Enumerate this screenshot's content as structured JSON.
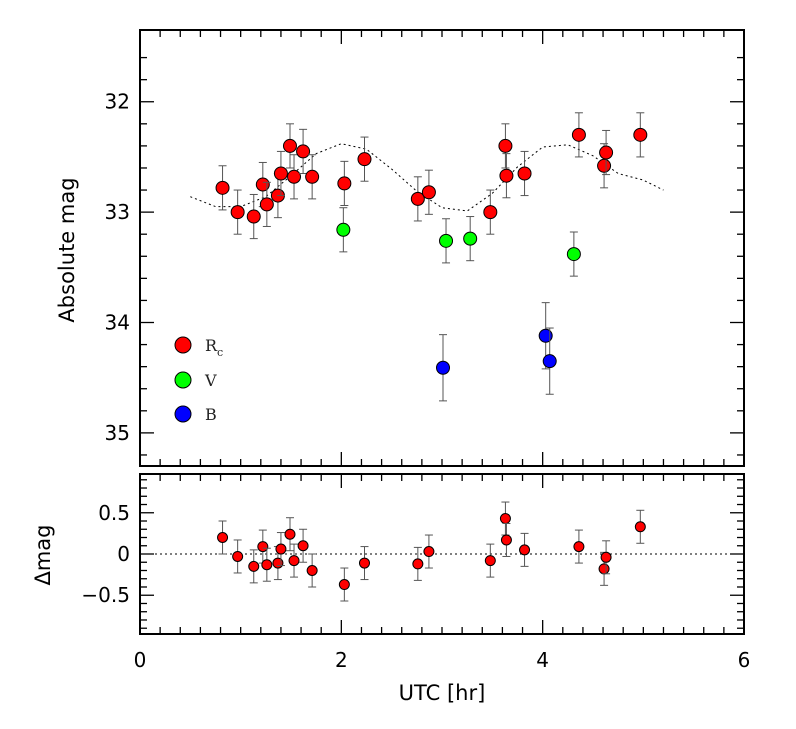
{
  "chart_data": [
    {
      "type": "scatter",
      "panel": "top",
      "xlabel": "UTC [hr]",
      "ylabel": "Absolute mag",
      "xlim": [
        0,
        6
      ],
      "ylim": [
        35.3,
        31.35
      ],
      "y_inverted": true,
      "x_ticks": [
        "0",
        "2",
        "4",
        "6"
      ],
      "y_ticks": [
        "32",
        "33",
        "34",
        "35"
      ],
      "legend": {
        "placement": "bottom-left",
        "entries": [
          {
            "label": "R",
            "subscript": "c",
            "color": "#ff0000"
          },
          {
            "label": "V",
            "color": "#00ff00"
          },
          {
            "label": "B",
            "color": "#0000ff"
          }
        ]
      },
      "series": [
        {
          "name": "Rc",
          "color": "#ff0000",
          "points": [
            {
              "x": 0.82,
              "y": 32.78,
              "err": 0.2
            },
            {
              "x": 0.97,
              "y": 33.0,
              "err": 0.2
            },
            {
              "x": 1.13,
              "y": 33.04,
              "err": 0.2
            },
            {
              "x": 1.22,
              "y": 32.75,
              "err": 0.2
            },
            {
              "x": 1.26,
              "y": 32.93,
              "err": 0.2
            },
            {
              "x": 1.37,
              "y": 32.85,
              "err": 0.2
            },
            {
              "x": 1.4,
              "y": 32.65,
              "err": 0.2
            },
            {
              "x": 1.49,
              "y": 32.4,
              "err": 0.2
            },
            {
              "x": 1.53,
              "y": 32.68,
              "err": 0.2
            },
            {
              "x": 1.62,
              "y": 32.45,
              "err": 0.2
            },
            {
              "x": 1.71,
              "y": 32.68,
              "err": 0.2
            },
            {
              "x": 2.03,
              "y": 32.74,
              "err": 0.2
            },
            {
              "x": 2.23,
              "y": 32.52,
              "err": 0.2
            },
            {
              "x": 2.76,
              "y": 32.88,
              "err": 0.2
            },
            {
              "x": 2.87,
              "y": 32.82,
              "err": 0.2
            },
            {
              "x": 3.48,
              "y": 33.0,
              "err": 0.2
            },
            {
              "x": 3.63,
              "y": 32.4,
              "err": 0.2
            },
            {
              "x": 3.64,
              "y": 32.67,
              "err": 0.2
            },
            {
              "x": 3.82,
              "y": 32.65,
              "err": 0.2
            },
            {
              "x": 4.36,
              "y": 32.3,
              "err": 0.2
            },
            {
              "x": 4.61,
              "y": 32.58,
              "err": 0.2
            },
            {
              "x": 4.63,
              "y": 32.46,
              "err": 0.2
            },
            {
              "x": 4.97,
              "y": 32.3,
              "err": 0.2
            }
          ]
        },
        {
          "name": "V",
          "color": "#00ff00",
          "points": [
            {
              "x": 2.02,
              "y": 33.16,
              "err": 0.2
            },
            {
              "x": 3.04,
              "y": 33.26,
              "err": 0.2
            },
            {
              "x": 3.28,
              "y": 33.24,
              "err": 0.2
            },
            {
              "x": 4.31,
              "y": 33.38,
              "err": 0.2
            }
          ]
        },
        {
          "name": "B",
          "color": "#0000ff",
          "points": [
            {
              "x": 3.01,
              "y": 34.41,
              "err": 0.3
            },
            {
              "x": 4.03,
              "y": 34.12,
              "err": 0.3
            },
            {
              "x": 4.07,
              "y": 34.35,
              "err": 0.3
            }
          ]
        }
      ],
      "model_curve": {
        "style": "dotted",
        "x": [
          0.5,
          0.75,
          1.0,
          1.25,
          1.5,
          1.75,
          2.0,
          2.25,
          2.5,
          2.75,
          3.0,
          3.25,
          3.5,
          3.75,
          4.0,
          4.25,
          4.5,
          4.75,
          5.0,
          5.2
        ],
        "y": [
          32.86,
          32.95,
          32.95,
          32.86,
          32.67,
          32.47,
          32.38,
          32.43,
          32.61,
          32.81,
          32.96,
          32.99,
          32.83,
          32.59,
          32.41,
          32.39,
          32.49,
          32.65,
          32.71,
          32.8
        ]
      }
    },
    {
      "type": "scatter",
      "panel": "bottom",
      "xlabel": "UTC [hr]",
      "ylabel": "Δmag",
      "xlim": [
        0,
        6
      ],
      "ylim": [
        -0.97,
        0.97
      ],
      "x_ticks": [
        "0",
        "2",
        "4",
        "6"
      ],
      "y_ticks": [
        "0.5",
        "0",
        "−0.5"
      ],
      "reference_line": {
        "y": 0,
        "style": "dotted"
      },
      "series": [
        {
          "name": "Rc residuals",
          "color": "#ff0000",
          "points": [
            {
              "x": 0.82,
              "y": 0.2,
              "err": 0.2
            },
            {
              "x": 0.97,
              "y": -0.03,
              "err": 0.2
            },
            {
              "x": 1.13,
              "y": -0.15,
              "err": 0.2
            },
            {
              "x": 1.22,
              "y": 0.09,
              "err": 0.2
            },
            {
              "x": 1.26,
              "y": -0.13,
              "err": 0.2
            },
            {
              "x": 1.37,
              "y": -0.11,
              "err": 0.2
            },
            {
              "x": 1.4,
              "y": 0.06,
              "err": 0.2
            },
            {
              "x": 1.49,
              "y": 0.24,
              "err": 0.2
            },
            {
              "x": 1.53,
              "y": -0.08,
              "err": 0.2
            },
            {
              "x": 1.62,
              "y": 0.1,
              "err": 0.2
            },
            {
              "x": 1.71,
              "y": -0.2,
              "err": 0.2
            },
            {
              "x": 2.03,
              "y": -0.37,
              "err": 0.2
            },
            {
              "x": 2.23,
              "y": -0.11,
              "err": 0.2
            },
            {
              "x": 2.76,
              "y": -0.12,
              "err": 0.2
            },
            {
              "x": 2.87,
              "y": 0.03,
              "err": 0.2
            },
            {
              "x": 3.48,
              "y": -0.08,
              "err": 0.2
            },
            {
              "x": 3.63,
              "y": 0.43,
              "err": 0.2
            },
            {
              "x": 3.64,
              "y": 0.17,
              "err": 0.2
            },
            {
              "x": 3.82,
              "y": 0.05,
              "err": 0.2
            },
            {
              "x": 4.36,
              "y": 0.09,
              "err": 0.2
            },
            {
              "x": 4.61,
              "y": -0.18,
              "err": 0.2
            },
            {
              "x": 4.63,
              "y": -0.04,
              "err": 0.2
            },
            {
              "x": 4.97,
              "y": 0.33,
              "err": 0.2
            }
          ]
        }
      ]
    }
  ]
}
